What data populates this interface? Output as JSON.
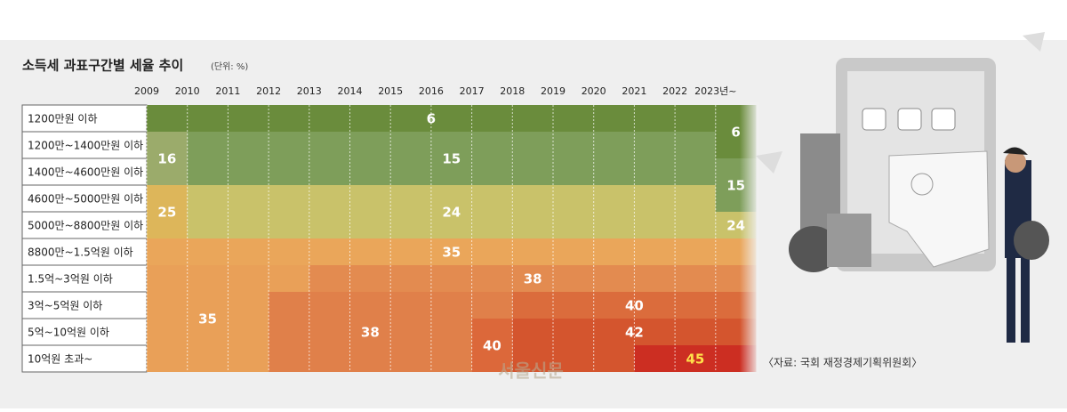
{
  "title": "소득세 과표구간별 세율 추이",
  "unit": "(단위: %)",
  "years": [
    "2009",
    "2010",
    "2011",
    "2012",
    "2013",
    "2014",
    "2015",
    "2016",
    "2017",
    "2018",
    "2019",
    "2020",
    "2021",
    "2022",
    "2023년~"
  ],
  "brackets": [
    "1200만원 이하",
    "1200만~1400만원 이하",
    "1400만~4600만원 이하",
    "4600만~5000만원 이하",
    "5000만~8800만원 이하",
    "8800만~1.5억원 이하",
    "1.5억~3억원 이하",
    "3억~5억원 이하",
    "5억~10억원 이하",
    "10억원 초과~"
  ],
  "blocks": [
    {
      "rate": 6,
      "rows": [
        0,
        0
      ],
      "years": [
        0,
        14
      ],
      "color": "#6a8c3c",
      "labeled": true
    },
    {
      "rate": 16,
      "rows": [
        1,
        2
      ],
      "years": [
        0,
        1
      ],
      "color": "#9bab6b",
      "labeled": true
    },
    {
      "rate": 15,
      "rows": [
        1,
        2
      ],
      "years": [
        1,
        14
      ],
      "color": "#7e9e5a",
      "labeled": true
    },
    {
      "rate": 25,
      "rows": [
        3,
        4
      ],
      "years": [
        0,
        1
      ],
      "color": "#ddb65a",
      "labeled": true
    },
    {
      "rate": 24,
      "rows": [
        3,
        4
      ],
      "years": [
        1,
        14
      ],
      "color": "#c9c26a",
      "labeled": true
    },
    {
      "rate": 6,
      "rows": [
        0,
        1
      ],
      "years": [
        14,
        15
      ],
      "color": "#6a8c3c",
      "labeled": true
    },
    {
      "rate": 15,
      "rows": [
        2,
        3
      ],
      "years": [
        14,
        15
      ],
      "color": "#7e9e5a",
      "labeled": true
    },
    {
      "rate": 24,
      "rows": [
        4,
        4
      ],
      "years": [
        14,
        15
      ],
      "color": "#c9c26a",
      "labeled": true
    },
    {
      "rate": 35,
      "rows": [
        5,
        5
      ],
      "years": [
        0,
        15
      ],
      "color": "#eaa65a",
      "labeled": true
    },
    {
      "rate": 35,
      "rows": [
        6,
        9
      ],
      "years": [
        0,
        3
      ],
      "color": "#e9a058",
      "labeled": true
    },
    {
      "rate": 35,
      "rows": [
        6,
        6
      ],
      "years": [
        3,
        4
      ],
      "color": "#e9a058",
      "labeled": false
    },
    {
      "rate": 38,
      "rows": [
        6,
        6
      ],
      "years": [
        4,
        15
      ],
      "color": "#e38b50",
      "labeled": true
    },
    {
      "rate": 38,
      "rows": [
        7,
        9
      ],
      "years": [
        3,
        8
      ],
      "color": "#e0804a",
      "labeled": true
    },
    {
      "rate": 38,
      "rows": [
        7,
        7
      ],
      "years": [
        8,
        9
      ],
      "color": "#e0804a",
      "labeled": false
    },
    {
      "rate": 40,
      "rows": [
        7,
        7
      ],
      "years": [
        9,
        15
      ],
      "color": "#db6c3c",
      "labeled": true
    },
    {
      "rate": 40,
      "rows": [
        8,
        9
      ],
      "years": [
        8,
        9
      ],
      "color": "#dc683a",
      "labeled": true
    },
    {
      "rate": 42,
      "rows": [
        8,
        8
      ],
      "years": [
        9,
        15
      ],
      "color": "#d4552e",
      "labeled": true
    },
    {
      "rate": 42,
      "rows": [
        9,
        9
      ],
      "years": [
        9,
        12
      ],
      "color": "#d4552e",
      "labeled": false
    },
    {
      "rate": 45,
      "rows": [
        9,
        9
      ],
      "years": [
        12,
        15
      ],
      "color": "#cc2e22",
      "labeled": true
    }
  ],
  "source": "〈자료: 국회 재정경제기획위원회〉",
  "watermark": "서울신문"
}
